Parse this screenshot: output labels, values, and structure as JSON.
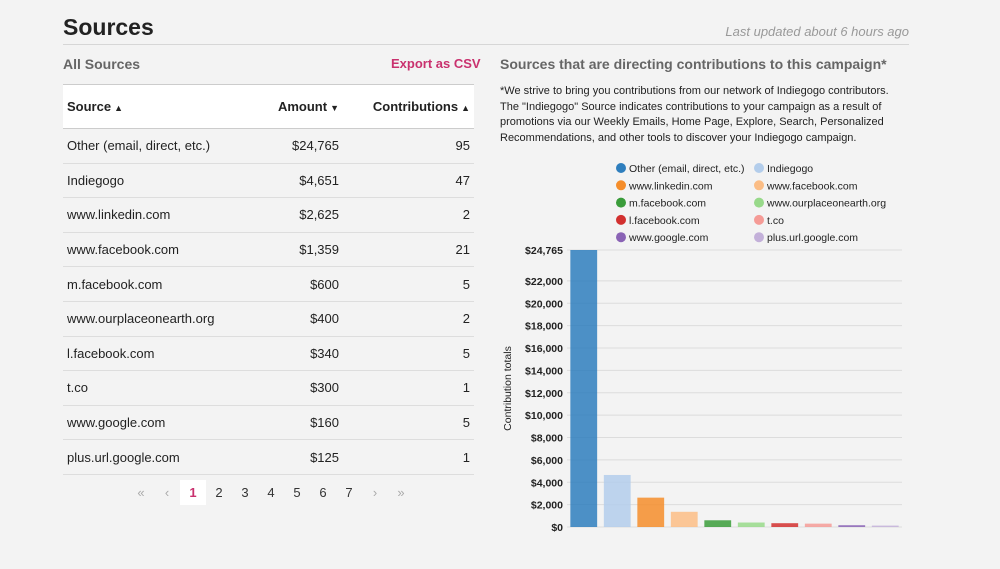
{
  "header": {
    "title": "Sources",
    "last_updated": "Last updated about 6 hours ago"
  },
  "left": {
    "heading": "All Sources",
    "export_label": "Export as CSV",
    "columns": {
      "source": "Source",
      "amount": "Amount",
      "contributions": "Contributions"
    },
    "rows": [
      {
        "source": "Other (email, direct, etc.)",
        "amount": "$24,765",
        "contributions": "95"
      },
      {
        "source": "Indiegogo",
        "amount": "$4,651",
        "contributions": "47"
      },
      {
        "source": "www.linkedin.com",
        "amount": "$2,625",
        "contributions": "2"
      },
      {
        "source": "www.facebook.com",
        "amount": "$1,359",
        "contributions": "21"
      },
      {
        "source": "m.facebook.com",
        "amount": "$600",
        "contributions": "5"
      },
      {
        "source": "www.ourplaceonearth.org",
        "amount": "$400",
        "contributions": "2"
      },
      {
        "source": "l.facebook.com",
        "amount": "$340",
        "contributions": "5"
      },
      {
        "source": "t.co",
        "amount": "$300",
        "contributions": "1"
      },
      {
        "source": "www.google.com",
        "amount": "$160",
        "contributions": "5"
      },
      {
        "source": "plus.url.google.com",
        "amount": "$125",
        "contributions": "1"
      }
    ],
    "pagination": {
      "first": "«",
      "prev": "‹",
      "pages": [
        "1",
        "2",
        "3",
        "4",
        "5",
        "6",
        "7"
      ],
      "current": "1",
      "next": "›",
      "last": "»"
    }
  },
  "right": {
    "heading": "Sources that are directing contributions to this campaign*",
    "note": "*We strive to bring you contributions from our network of Indiegogo contributors. The \"Indiegogo\" Source indicates contributions to your campaign as a result of promotions via our Weekly Emails, Home Page, Explore, Search, Personalized Recommendations, and other tools to discover your Indiegogo campaign."
  },
  "chart_data": {
    "type": "bar",
    "title": "",
    "xlabel": "",
    "ylabel": "Contribution totals",
    "ylim": [
      0,
      24765
    ],
    "top_tick_label": "$24,765",
    "yticks": [
      0,
      2000,
      4000,
      6000,
      8000,
      10000,
      12000,
      14000,
      16000,
      18000,
      20000,
      22000
    ],
    "ytick_labels": [
      "$0",
      "$2,000",
      "$4,000",
      "$6,000",
      "$8,000",
      "$10,000",
      "$12,000",
      "$14,000",
      "$16,000",
      "$18,000",
      "$20,000",
      "$22,000"
    ],
    "categories": [
      "Other (email, direct, etc.)",
      "Indiegogo",
      "www.linkedin.com",
      "www.facebook.com",
      "m.facebook.com",
      "www.ourplaceonearth.org",
      "l.facebook.com",
      "t.co",
      "www.google.com",
      "plus.url.google.com"
    ],
    "values": [
      24765,
      4651,
      2625,
      1359,
      600,
      400,
      340,
      300,
      160,
      125
    ],
    "colors": [
      "#2e7ebd",
      "#b3cdeb",
      "#f58d2a",
      "#fbbd85",
      "#3a9c3a",
      "#98d98a",
      "#d2302f",
      "#f59b96",
      "#8a63b5",
      "#c3b0d9"
    ],
    "legend_position": "top"
  }
}
